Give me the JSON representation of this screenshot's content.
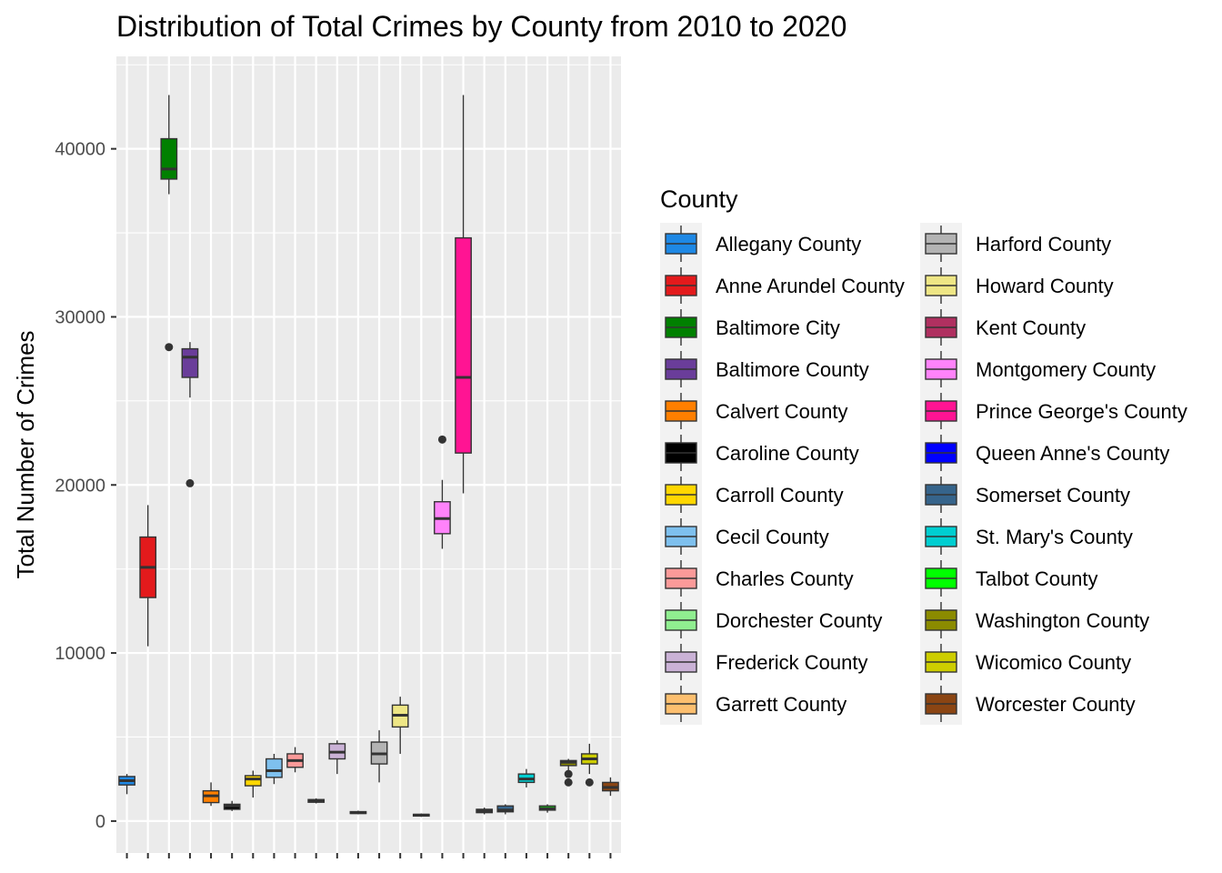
{
  "chart_data": {
    "type": "box",
    "title": "Distribution of Total Crimes by County from 2010 to 2020",
    "xlabel": "",
    "ylabel": "Total Number of Crimes",
    "ylim": [
      -1900,
      45500
    ],
    "y_ticks": [
      0,
      10000,
      20000,
      30000,
      40000
    ],
    "y_tick_labels": [
      "0",
      "10000",
      "20000",
      "30000",
      "40000"
    ],
    "grid": true,
    "legend": {
      "title": "County",
      "position": "right",
      "columns": 2
    },
    "series": [
      {
        "name": "Allegany County",
        "color": "#1E88E5",
        "min": 1600,
        "q1": 2150,
        "median": 2400,
        "q3": 2650,
        "max": 2800,
        "outliers": []
      },
      {
        "name": "Anne Arundel County",
        "color": "#E31A1C",
        "min": 10400,
        "q1": 13300,
        "median": 15100,
        "q3": 16900,
        "max": 18800,
        "outliers": []
      },
      {
        "name": "Baltimore City",
        "color": "#008000",
        "min": 37300,
        "q1": 38200,
        "median": 38800,
        "q3": 40600,
        "max": 43200,
        "outliers": [
          28200
        ]
      },
      {
        "name": "Baltimore County",
        "color": "#6A3D9A",
        "min": 25200,
        "q1": 26400,
        "median": 27600,
        "q3": 28100,
        "max": 28500,
        "outliers": [
          20100
        ]
      },
      {
        "name": "Calvert County",
        "color": "#FF7F00",
        "min": 900,
        "q1": 1100,
        "median": 1500,
        "q3": 1800,
        "max": 2300,
        "outliers": []
      },
      {
        "name": "Caroline County",
        "color": "#000000",
        "min": 600,
        "q1": 700,
        "median": 900,
        "q3": 1000,
        "max": 1200,
        "outliers": []
      },
      {
        "name": "Carroll County",
        "color": "#FFD700",
        "min": 1400,
        "q1": 2100,
        "median": 2500,
        "q3": 2700,
        "max": 3000,
        "outliers": []
      },
      {
        "name": "Cecil County",
        "color": "#7EC0EE",
        "min": 2200,
        "q1": 2600,
        "median": 3000,
        "q3": 3700,
        "max": 4000,
        "outliers": []
      },
      {
        "name": "Charles County",
        "color": "#FB9A99",
        "min": 2900,
        "q1": 3200,
        "median": 3600,
        "q3": 4000,
        "max": 4400,
        "outliers": []
      },
      {
        "name": "Dorchester County",
        "color": "#90EE90",
        "min": 1050,
        "q1": 1120,
        "median": 1200,
        "q3": 1280,
        "max": 1350,
        "outliers": []
      },
      {
        "name": "Frederick County",
        "color": "#CAB2D6",
        "min": 2800,
        "q1": 3700,
        "median": 4100,
        "q3": 4600,
        "max": 4800,
        "outliers": []
      },
      {
        "name": "Garrett County",
        "color": "#FDBF6F",
        "min": 400,
        "q1": 450,
        "median": 500,
        "q3": 560,
        "max": 620,
        "outliers": []
      },
      {
        "name": "Harford County",
        "color": "#B3B3B3",
        "min": 2300,
        "q1": 3400,
        "median": 4000,
        "q3": 4700,
        "max": 5400,
        "outliers": []
      },
      {
        "name": "Howard County",
        "color": "#EEE685",
        "min": 4000,
        "q1": 5600,
        "median": 6300,
        "q3": 6900,
        "max": 7400,
        "outliers": []
      },
      {
        "name": "Kent County",
        "color": "#B03060",
        "min": 250,
        "q1": 300,
        "median": 350,
        "q3": 400,
        "max": 450,
        "outliers": []
      },
      {
        "name": "Montgomery County",
        "color": "#FF83FA",
        "min": 16200,
        "q1": 17100,
        "median": 18000,
        "q3": 19000,
        "max": 20300,
        "outliers": [
          22700
        ]
      },
      {
        "name": "Prince George's County",
        "color": "#FF1493",
        "min": 19500,
        "q1": 21900,
        "median": 26400,
        "q3": 34700,
        "max": 43200,
        "outliers": []
      },
      {
        "name": "Queen Anne's County",
        "color": "#0000FF",
        "min": 400,
        "q1": 500,
        "median": 600,
        "q3": 700,
        "max": 800,
        "outliers": []
      },
      {
        "name": "Somerset County",
        "color": "#36648B",
        "min": 400,
        "q1": 550,
        "median": 650,
        "q3": 900,
        "max": 1000,
        "outliers": []
      },
      {
        "name": "St. Mary's County",
        "color": "#00CED1",
        "min": 2000,
        "q1": 2300,
        "median": 2500,
        "q3": 2800,
        "max": 3100,
        "outliers": []
      },
      {
        "name": "Talbot County",
        "color": "#00FF00",
        "min": 500,
        "q1": 650,
        "median": 750,
        "q3": 900,
        "max": 1000,
        "outliers": []
      },
      {
        "name": "Washington County",
        "color": "#8B8B00",
        "min": 2900,
        "q1": 3300,
        "median": 3500,
        "q3": 3600,
        "max": 3700,
        "outliers": [
          2800,
          2300
        ]
      },
      {
        "name": "Wicomico County",
        "color": "#CDCD00",
        "min": 2800,
        "q1": 3400,
        "median": 3700,
        "q3": 4000,
        "max": 4600,
        "outliers": [
          2300
        ]
      },
      {
        "name": "Worcester County",
        "color": "#8B4513",
        "min": 1500,
        "q1": 1800,
        "median": 2000,
        "q3": 2300,
        "max": 2600,
        "outliers": []
      }
    ]
  }
}
